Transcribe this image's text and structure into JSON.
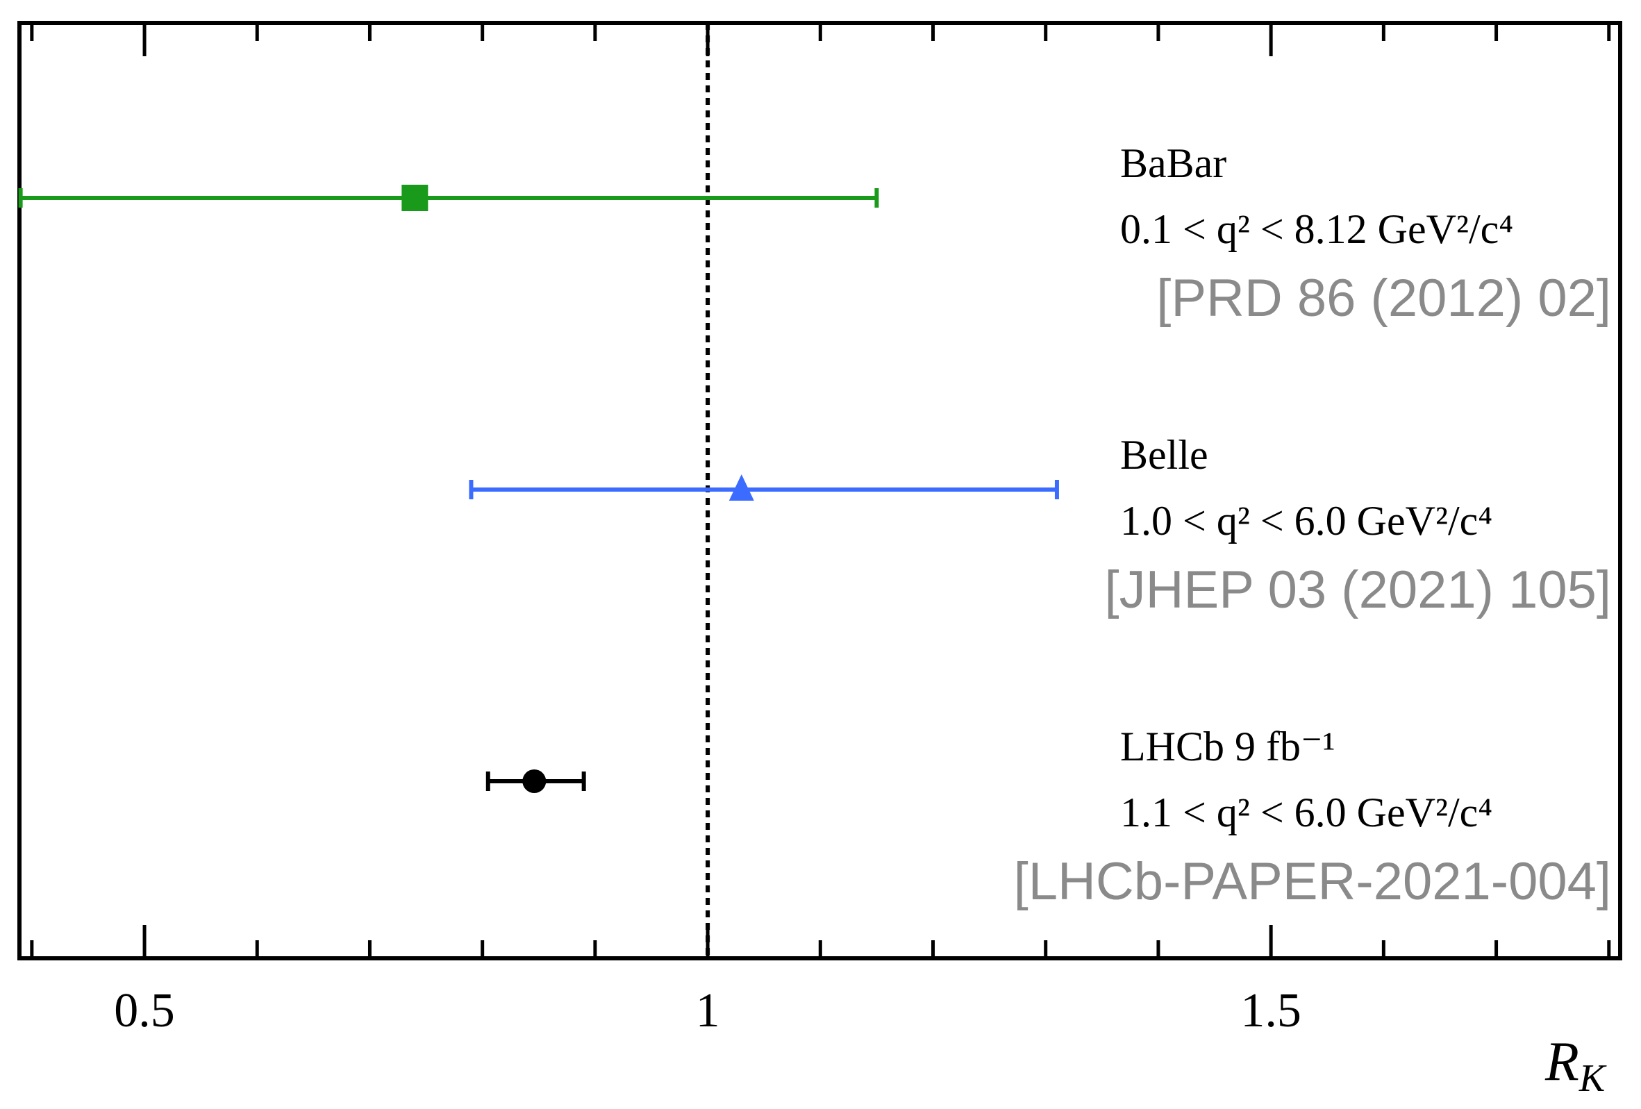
{
  "chart_data": {
    "type": "scatter",
    "orientation": "horizontal-error-bars",
    "xlabel": "R",
    "xlabel_subscript": "K",
    "xlim": [
      0.389,
      1.81
    ],
    "x_ticks": [
      {
        "value": 0.5,
        "label": "0.5"
      },
      {
        "value": 1.0,
        "label": "1"
      },
      {
        "value": 1.5,
        "label": "1.5"
      }
    ],
    "minor_tick_step": 0.1,
    "reference_line": {
      "x": 1.0,
      "style": "dotted",
      "color": "#000000"
    },
    "grid": false,
    "series": [
      {
        "name": "BaBar",
        "label_lines": [
          "BaBar",
          "0.1 < q² < 8.12 GeV²/c⁴"
        ],
        "reference": "[PRD 86 (2012) 02]",
        "value": 0.74,
        "err_low": 0.35,
        "err_high": 0.41,
        "marker": "square",
        "color": "#1a9a1a"
      },
      {
        "name": "Belle",
        "label_lines": [
          "Belle",
          "1.0 < q² < 6.0 GeV²/c⁴"
        ],
        "reference": "[JHEP 03 (2021) 105]",
        "value": 1.03,
        "err_low": 0.24,
        "err_high": 0.28,
        "marker": "triangle",
        "color": "#3b6cff"
      },
      {
        "name": "LHCb 9 fb⁻¹",
        "label_lines": [
          "LHCb 9 fb⁻¹",
          "1.1 < q² < 6.0 GeV²/c⁴"
        ],
        "reference": "[LHCb-PAPER-2021-004]",
        "value": 0.846,
        "err_low": 0.041,
        "err_high": 0.044,
        "marker": "circle",
        "color": "#000000"
      }
    ]
  }
}
